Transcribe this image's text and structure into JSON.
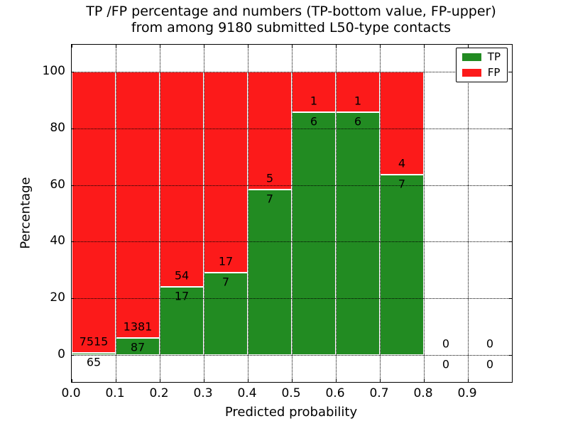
{
  "chart_data": {
    "type": "bar",
    "subtype": "stacked-percentage-histogram",
    "title": "TP /FP percentage and numbers (TP-bottom value, FP-upper)\nfrom among 9180 submitted L50-type contacts",
    "xlabel": "Predicted probability",
    "ylabel": "Percentage",
    "x_ticks": [
      "0.0",
      "0.1",
      "0.2",
      "0.3",
      "0.4",
      "0.5",
      "0.6",
      "0.7",
      "0.8",
      "0.9"
    ],
    "y_ticks": [
      0,
      20,
      40,
      60,
      80,
      100
    ],
    "xlim": [
      0.0,
      1.0
    ],
    "ylim": [
      -10,
      110
    ],
    "grid": "dotted",
    "legend_position": "upper-right",
    "series": [
      {
        "name": "TP",
        "color": "#228b22"
      },
      {
        "name": "FP",
        "color": "#fc1a1a"
      }
    ],
    "bins": [
      {
        "x_start": 0.0,
        "x_end": 0.1,
        "tp": 65,
        "fp": 7515
      },
      {
        "x_start": 0.1,
        "x_end": 0.2,
        "tp": 87,
        "fp": 1381
      },
      {
        "x_start": 0.2,
        "x_end": 0.3,
        "tp": 17,
        "fp": 54
      },
      {
        "x_start": 0.3,
        "x_end": 0.4,
        "tp": 7,
        "fp": 17
      },
      {
        "x_start": 0.4,
        "x_end": 0.5,
        "tp": 7,
        "fp": 5
      },
      {
        "x_start": 0.5,
        "x_end": 0.6,
        "tp": 6,
        "fp": 1
      },
      {
        "x_start": 0.6,
        "x_end": 0.7,
        "tp": 6,
        "fp": 1
      },
      {
        "x_start": 0.7,
        "x_end": 0.8,
        "tp": 7,
        "fp": 4
      },
      {
        "x_start": 0.8,
        "x_end": 0.9,
        "tp": 0,
        "fp": 0
      },
      {
        "x_start": 0.9,
        "x_end": 1.0,
        "tp": 0,
        "fp": 0
      }
    ]
  }
}
